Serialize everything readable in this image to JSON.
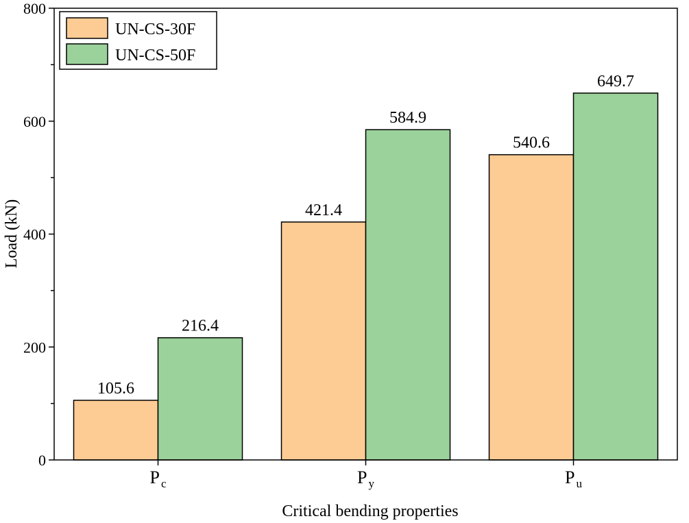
{
  "chart_data": {
    "type": "bar",
    "xlabel": "Critical bending properties",
    "ylabel": "Load (kN)",
    "ylim": [
      0,
      800
    ],
    "yticks": [
      0,
      200,
      400,
      600,
      800
    ],
    "categories": [
      {
        "main": "P",
        "sub": "c"
      },
      {
        "main": "P",
        "sub": "y"
      },
      {
        "main": "P",
        "sub": "u"
      }
    ],
    "series": [
      {
        "name": "UN-CS-30F",
        "color": "#FDCC94",
        "values": [
          105.6,
          421.4,
          540.6
        ],
        "labels": [
          "105.6",
          "421.4",
          "540.6"
        ]
      },
      {
        "name": "UN-CS-50F",
        "color": "#9BD29B",
        "values": [
          216.4,
          584.9,
          649.7
        ],
        "labels": [
          "216.4",
          "584.9",
          "649.7"
        ]
      }
    ],
    "legend_position": "top-left",
    "grid": false
  }
}
